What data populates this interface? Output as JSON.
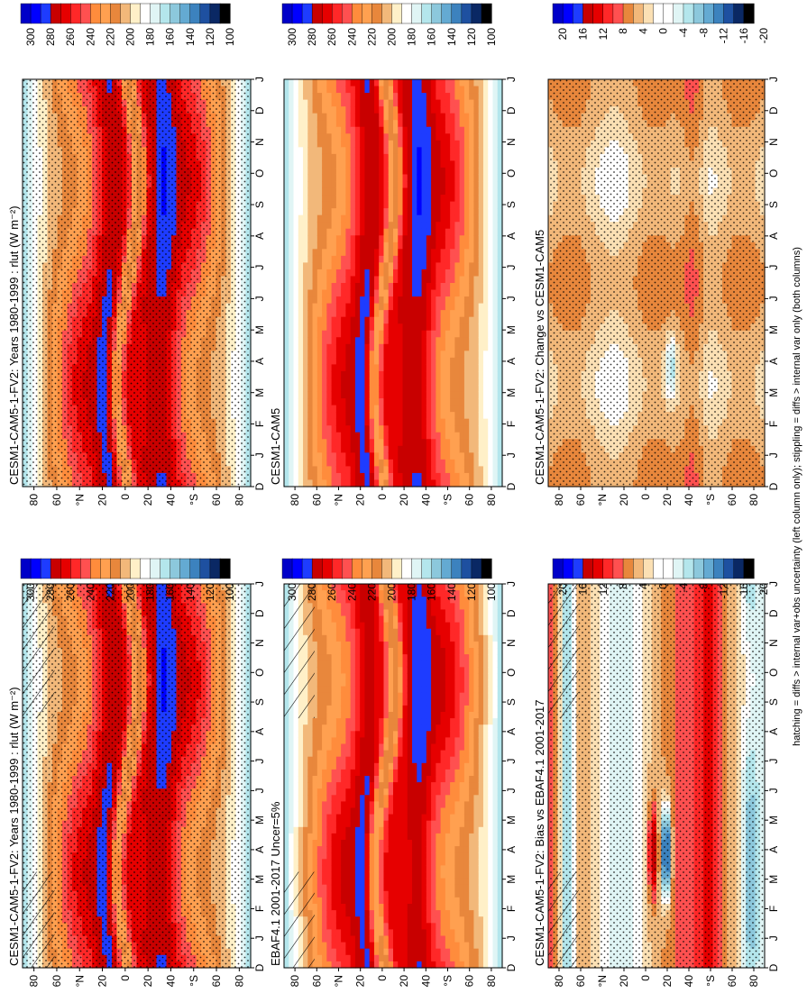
{
  "figure": {
    "footer_note": "hatching = diffs > internal var+obs uncertainty (left column only); stippling = diffs > internal var only (both columns)"
  },
  "colors": {
    "abs_scale": [
      "#0000c8",
      "#0000ff",
      "#1e3cff",
      "#c80000",
      "#e60000",
      "#ff2828",
      "#ff5050",
      "#ff8c3c",
      "#ffa050",
      "#e8873c",
      "#f2b87a",
      "#fff0c8",
      "#ffffff",
      "#e0f5f5",
      "#b4e6ec",
      "#8cc8dc",
      "#64aad2",
      "#3c82be",
      "#1e50a0",
      "#0a2864",
      "#000000"
    ],
    "diff_scale": [
      "#0000c8",
      "#0000ff",
      "#1e3cff",
      "#c80000",
      "#e60000",
      "#ff2828",
      "#ff5050",
      "#e8873c",
      "#f2b87a",
      "#fbe0b4",
      "#ffffff",
      "#ffffff",
      "#e0f5f5",
      "#b4e6ec",
      "#8cc8dc",
      "#64aad2",
      "#3c82be",
      "#1e50a0",
      "#0a2864",
      "#000000"
    ]
  },
  "chart_data": [
    {
      "id": "model-left",
      "type": "heatmap",
      "title": "CESM1-CAM5-1-FV2: Years 1980-1999 : rlut (W m⁻²)",
      "x_ticks": [
        "D",
        "J",
        "F",
        "M",
        "A",
        "M",
        "J",
        "J",
        "A",
        "S",
        "O",
        "N",
        "D",
        "J"
      ],
      "y_ticks": [
        "80",
        "60",
        "°N",
        "20",
        "0",
        "20",
        "40",
        "°S",
        "60",
        "80"
      ],
      "colorbar_ticks": [
        "300",
        "280",
        "260",
        "240",
        "220",
        "200",
        "180",
        "160",
        "140",
        "120",
        "100"
      ],
      "scale": "abs",
      "hatched": true,
      "stippled": true
    },
    {
      "id": "model-right",
      "type": "heatmap",
      "title": "CESM1-CAM5-1-FV2: Years 1980-1999 : rlut (W m⁻²)",
      "x_ticks": [
        "D",
        "J",
        "F",
        "M",
        "A",
        "M",
        "J",
        "J",
        "A",
        "S",
        "O",
        "N",
        "D",
        "J"
      ],
      "y_ticks": [
        "80",
        "60",
        "°N",
        "20",
        "0",
        "20",
        "40",
        "°S",
        "60",
        "80"
      ],
      "colorbar_ticks": [
        "300",
        "280",
        "260",
        "240",
        "220",
        "200",
        "180",
        "160",
        "140",
        "120",
        "100"
      ],
      "scale": "abs",
      "hatched": false,
      "stippled": true
    },
    {
      "id": "obs",
      "type": "heatmap",
      "title": "EBAF4.1 2001-2017 Uncer=5%",
      "x_ticks": [
        "D",
        "J",
        "F",
        "M",
        "A",
        "M",
        "J",
        "J",
        "A",
        "S",
        "O",
        "N",
        "D",
        "J"
      ],
      "y_ticks": [
        "80",
        "60",
        "°N",
        "20",
        "0",
        "20",
        "40",
        "°S",
        "60",
        "80"
      ],
      "colorbar_ticks": [
        "300",
        "280",
        "260",
        "240",
        "220",
        "200",
        "180",
        "160",
        "140",
        "120",
        "100"
      ],
      "scale": "abs",
      "hatched": true,
      "stippled": false
    },
    {
      "id": "ref-model",
      "type": "heatmap",
      "title": "CESM1-CAM5",
      "x_ticks": [
        "D",
        "J",
        "F",
        "M",
        "A",
        "M",
        "J",
        "J",
        "A",
        "S",
        "O",
        "N",
        "D",
        "J"
      ],
      "y_ticks": [
        "80",
        "60",
        "°N",
        "20",
        "0",
        "20",
        "40",
        "°S",
        "60",
        "80"
      ],
      "colorbar_ticks": [
        "300",
        "280",
        "260",
        "240",
        "220",
        "200",
        "180",
        "160",
        "140",
        "120",
        "100"
      ],
      "scale": "abs",
      "hatched": false,
      "stippled": false
    },
    {
      "id": "bias",
      "type": "heatmap",
      "title": "CESM1-CAM5-1-FV2: Bias vs EBAF4.1 2001-2017",
      "x_ticks": [
        "D",
        "J",
        "F",
        "M",
        "A",
        "M",
        "J",
        "J",
        "A",
        "S",
        "O",
        "N",
        "D",
        "J"
      ],
      "y_ticks": [
        "80",
        "60",
        "°N",
        "20",
        "0",
        "20",
        "40",
        "°S",
        "60",
        "80"
      ],
      "colorbar_ticks": [
        "20",
        "16",
        "12",
        "8",
        "4",
        "0",
        "-4",
        "-8",
        "-12",
        "-16",
        "-20"
      ],
      "scale": "diff",
      "hatched": true,
      "stippled": true
    },
    {
      "id": "change",
      "type": "heatmap",
      "title": "CESM1-CAM5-1-FV2: Change vs CESM1-CAM5",
      "x_ticks": [
        "D",
        "J",
        "F",
        "M",
        "A",
        "M",
        "J",
        "J",
        "A",
        "S",
        "O",
        "N",
        "D",
        "J"
      ],
      "y_ticks": [
        "80",
        "60",
        "°N",
        "20",
        "0",
        "20",
        "40",
        "°S",
        "60",
        "80"
      ],
      "colorbar_ticks": [
        "20",
        "16",
        "12",
        "8",
        "4",
        "0",
        "-4",
        "-8",
        "-12",
        "-16",
        "-20"
      ],
      "scale": "diff",
      "hatched": false,
      "stippled": true
    }
  ]
}
